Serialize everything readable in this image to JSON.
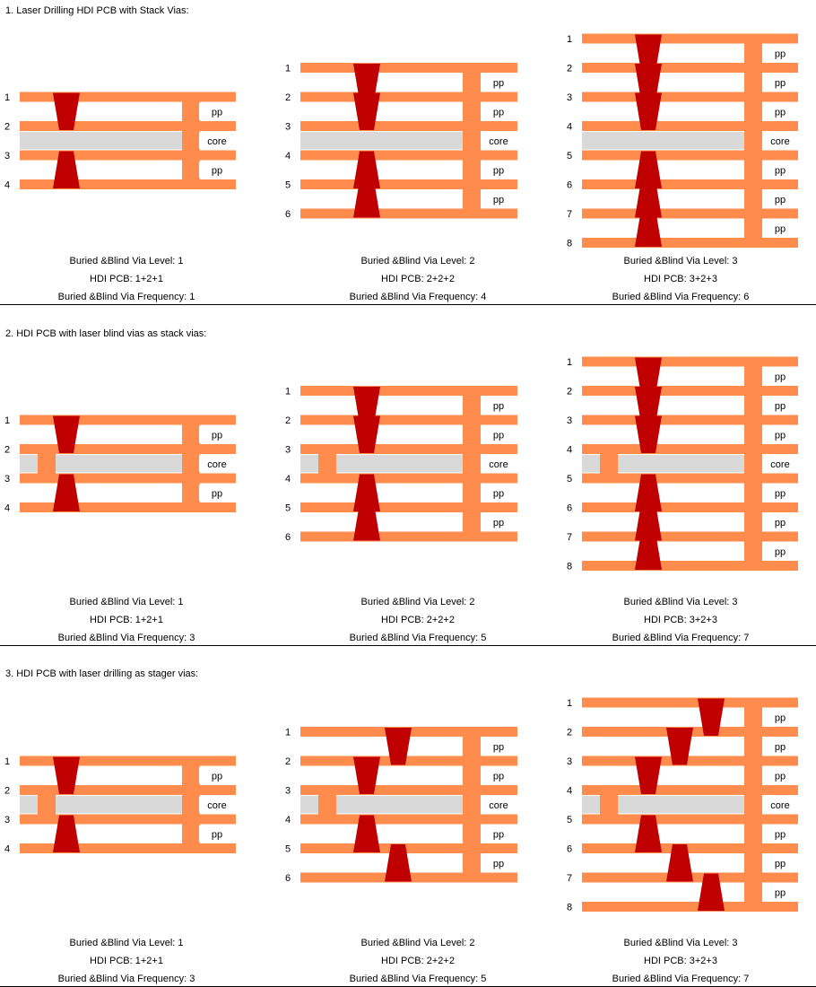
{
  "colors": {
    "copper": "#ff8c4d",
    "core": "#d9d9d9",
    "via": "#c00000",
    "label_box": "#ffffff"
  },
  "labels": {
    "pp": "pp",
    "core": "core"
  },
  "sections": [
    {
      "title": "1. Laser Drilling HDI PCB with Stack Vias:",
      "core_type": "plain",
      "via_style": "stack",
      "panels": [
        {
          "layers": 4,
          "level": 1,
          "caption": [
            "Buried &Blind Via Level: 1",
            "HDI PCB: 1+2+1",
            "Buried &Blind Via Frequency: 1"
          ]
        },
        {
          "layers": 6,
          "level": 2,
          "caption": [
            "Buried &Blind Via Level: 2",
            "HDI PCB: 2+2+2",
            "Buried &Blind Via Frequency: 4"
          ]
        },
        {
          "layers": 8,
          "level": 3,
          "caption": [
            "Buried &Blind Via Level: 3",
            "HDI PCB: 3+2+3",
            "Buried &Blind Via Frequency: 6"
          ]
        }
      ]
    },
    {
      "title": "2. HDI PCB with laser blind vias as stack vias:",
      "core_type": "plated",
      "via_style": "stack",
      "panels": [
        {
          "layers": 4,
          "level": 1,
          "caption": [
            "Buried &Blind Via Level: 1",
            "HDI PCB: 1+2+1",
            "Buried &Blind Via Frequency: 3"
          ]
        },
        {
          "layers": 6,
          "level": 2,
          "caption": [
            "Buried &Blind Via Level: 2",
            "HDI PCB: 2+2+2",
            "Buried &Blind Via Frequency: 5"
          ]
        },
        {
          "layers": 8,
          "level": 3,
          "caption": [
            "Buried &Blind Via Level: 3",
            "HDI PCB: 3+2+3",
            "Buried &Blind Via Frequency: 7"
          ]
        }
      ]
    },
    {
      "title": "3. HDI PCB with laser drilling as stager vias:",
      "core_type": "plated",
      "via_style": "stagger",
      "panels": [
        {
          "layers": 4,
          "level": 1,
          "caption": [
            "Buried &Blind Via Level: 1",
            "HDI PCB: 1+2+1",
            "Buried &Blind Via Frequency: 3"
          ]
        },
        {
          "layers": 6,
          "level": 2,
          "caption": [
            "Buried &Blind Via Level: 2",
            "HDI PCB: 2+2+2",
            "Buried &Blind Via Frequency: 5"
          ]
        },
        {
          "layers": 8,
          "level": 3,
          "caption": [
            "Buried &Blind Via Level: 3",
            "HDI PCB: 3+2+3",
            "Buried &Blind Via Frequency: 7"
          ]
        }
      ]
    }
  ]
}
